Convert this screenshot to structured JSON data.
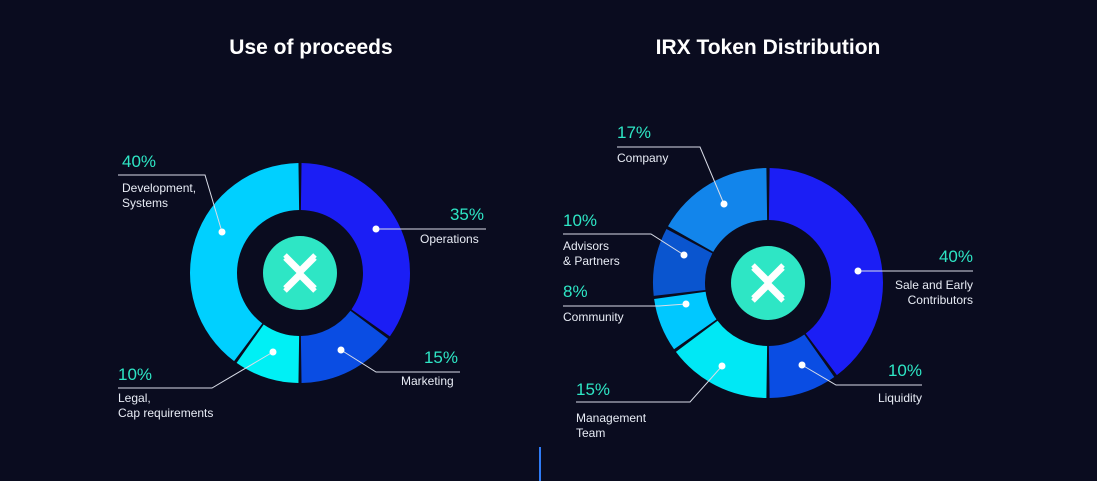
{
  "chart_data": [
    {
      "type": "pie",
      "title": "Use of proceeds",
      "slices": [
        {
          "label": [
            "Operations"
          ],
          "value": 35,
          "value_label": "35%",
          "color": "#1b1ef5"
        },
        {
          "label": [
            "Marketing"
          ],
          "value": 15,
          "value_label": "15%",
          "color": "#0a4de3"
        },
        {
          "label": [
            "Legal,",
            "Cap requirements"
          ],
          "value": 10,
          "value_label": "10%",
          "color": "#00f0f5"
        },
        {
          "label": [
            "Development,",
            "Systems"
          ],
          "value": 40,
          "value_label": "40%",
          "color": "#00d0ff"
        }
      ]
    },
    {
      "type": "pie",
      "title": "IRX Token Distribution",
      "slices": [
        {
          "label": [
            "Sale and Early",
            "Contributors"
          ],
          "value": 40,
          "value_label": "40%",
          "color": "#1b1ef5"
        },
        {
          "label": [
            "Liquidity"
          ],
          "value": 10,
          "value_label": "10%",
          "color": "#0a4de3"
        },
        {
          "label": [
            "Management",
            "Team"
          ],
          "value": 15,
          "value_label": "15%",
          "color": "#00e8f5"
        },
        {
          "label": [
            "Community"
          ],
          "value": 8,
          "value_label": "8%",
          "color": "#00c8ff"
        },
        {
          "label": [
            "Advisors",
            "& Partners"
          ],
          "value": 10,
          "value_label": "10%",
          "color": "#0a55cf"
        },
        {
          "label": [
            "Company"
          ],
          "value": 17,
          "value_label": "17%",
          "color": "#1285eb"
        }
      ]
    }
  ],
  "colors": {
    "background": "#0a0c1f",
    "accent": "#2ee6c5",
    "logo": "#2ee6c5",
    "divider": "#2f7bf5"
  },
  "icons": {
    "center_logo": "x-logo-icon"
  }
}
